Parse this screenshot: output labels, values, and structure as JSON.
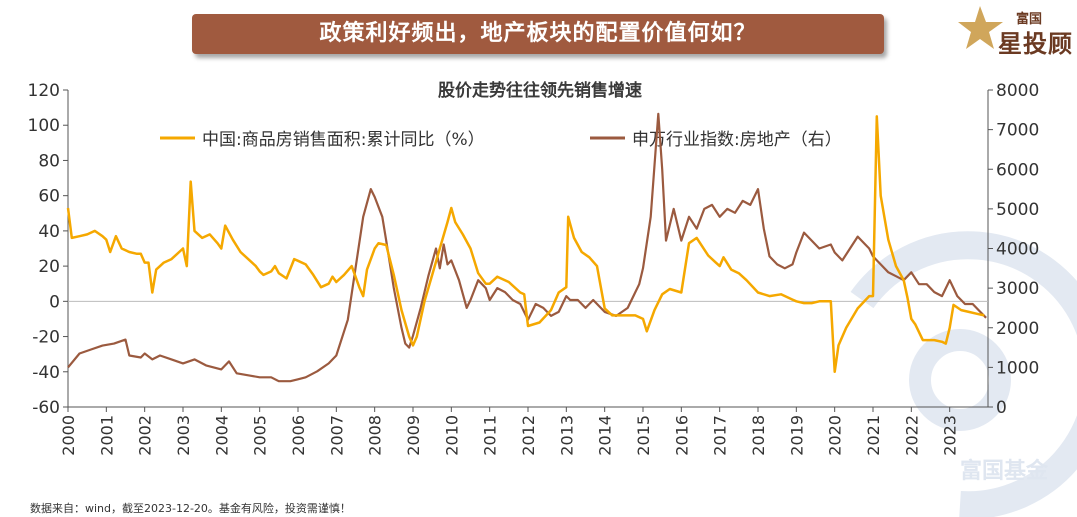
{
  "banner": {
    "title": "政策利好频出，地产板块的配置价值何如？"
  },
  "logo": {
    "small": "富国",
    "main": "星投顾"
  },
  "watermark": {
    "text": "富国基金"
  },
  "footnote": "数据来自：wind，截至2023-12-20。基金有风险，投资需谨慎！",
  "colors": {
    "banner": "#a05a3f",
    "sales": "#f5a800",
    "index": "#9b5a3f",
    "watermark": "#e3e9f2"
  },
  "chart_data": {
    "type": "line",
    "title": "股价走势往往领先销售增速",
    "x_ticks": [
      "2000",
      "2001",
      "2002",
      "2003",
      "2004",
      "2005",
      "2006",
      "2007",
      "2008",
      "2009",
      "2010",
      "2011",
      "2012",
      "2013",
      "2014",
      "2015",
      "2016",
      "2017",
      "2018",
      "2019",
      "2020",
      "2021",
      "2022",
      "2023"
    ],
    "x_range": [
      2000,
      2024
    ],
    "y_left": {
      "range": [
        -60,
        120
      ],
      "ticks": [
        120,
        100,
        80,
        60,
        40,
        20,
        0,
        -20,
        -40,
        -60
      ]
    },
    "y_right": {
      "range": [
        0,
        8000
      ],
      "ticks": [
        8000,
        7000,
        6000,
        5000,
        4000,
        3000,
        2000,
        1000,
        0
      ]
    },
    "legend": [
      "中国:商品房销售面积:累计同比（%）",
      "申万行业指数:房地产（右）"
    ],
    "series": [
      {
        "name": "中国:商品房销售面积:累计同比（%）",
        "axis": "left",
        "points": [
          [
            2000.0,
            53
          ],
          [
            2000.1,
            36
          ],
          [
            2000.3,
            37
          ],
          [
            2000.5,
            38
          ],
          [
            2000.7,
            40
          ],
          [
            2000.9,
            37
          ],
          [
            2001.0,
            35
          ],
          [
            2001.1,
            28
          ],
          [
            2001.25,
            37
          ],
          [
            2001.4,
            30
          ],
          [
            2001.6,
            28
          ],
          [
            2001.8,
            27
          ],
          [
            2001.9,
            27
          ],
          [
            2002.0,
            22
          ],
          [
            2002.1,
            22
          ],
          [
            2002.2,
            5
          ],
          [
            2002.3,
            18
          ],
          [
            2002.5,
            22
          ],
          [
            2002.7,
            24
          ],
          [
            2002.9,
            28
          ],
          [
            2003.0,
            30
          ],
          [
            2003.1,
            20
          ],
          [
            2003.2,
            68
          ],
          [
            2003.3,
            40
          ],
          [
            2003.5,
            36
          ],
          [
            2003.7,
            38
          ],
          [
            2003.9,
            33
          ],
          [
            2004.0,
            30
          ],
          [
            2004.1,
            43
          ],
          [
            2004.3,
            35
          ],
          [
            2004.5,
            28
          ],
          [
            2004.7,
            24
          ],
          [
            2004.9,
            20
          ],
          [
            2005.0,
            17
          ],
          [
            2005.1,
            15
          ],
          [
            2005.3,
            17
          ],
          [
            2005.4,
            20
          ],
          [
            2005.5,
            16
          ],
          [
            2005.7,
            13
          ],
          [
            2005.9,
            24
          ],
          [
            2006.0,
            23
          ],
          [
            2006.2,
            21
          ],
          [
            2006.4,
            15
          ],
          [
            2006.6,
            8
          ],
          [
            2006.8,
            10
          ],
          [
            2006.9,
            14
          ],
          [
            2007.0,
            11
          ],
          [
            2007.2,
            15
          ],
          [
            2007.4,
            20
          ],
          [
            2007.6,
            8
          ],
          [
            2007.7,
            3
          ],
          [
            2007.8,
            18
          ],
          [
            2008.0,
            30
          ],
          [
            2008.1,
            33
          ],
          [
            2008.3,
            32
          ],
          [
            2008.5,
            15
          ],
          [
            2008.7,
            -5
          ],
          [
            2008.9,
            -20
          ],
          [
            2009.0,
            -25
          ],
          [
            2009.1,
            -20
          ],
          [
            2009.3,
            0
          ],
          [
            2009.5,
            15
          ],
          [
            2009.7,
            30
          ],
          [
            2009.9,
            45
          ],
          [
            2010.0,
            53
          ],
          [
            2010.1,
            45
          ],
          [
            2010.3,
            38
          ],
          [
            2010.5,
            30
          ],
          [
            2010.7,
            16
          ],
          [
            2010.9,
            10
          ],
          [
            2011.0,
            10
          ],
          [
            2011.2,
            14
          ],
          [
            2011.5,
            11
          ],
          [
            2011.8,
            5
          ],
          [
            2011.9,
            4
          ],
          [
            2012.0,
            -14
          ],
          [
            2012.3,
            -12
          ],
          [
            2012.6,
            -5
          ],
          [
            2012.8,
            5
          ],
          [
            2013.0,
            8
          ],
          [
            2013.05,
            48
          ],
          [
            2013.2,
            36
          ],
          [
            2013.4,
            28
          ],
          [
            2013.6,
            25
          ],
          [
            2013.8,
            20
          ],
          [
            2014.0,
            -4
          ],
          [
            2014.2,
            -8
          ],
          [
            2014.5,
            -8
          ],
          [
            2014.8,
            -8
          ],
          [
            2015.0,
            -10
          ],
          [
            2015.1,
            -17
          ],
          [
            2015.3,
            -5
          ],
          [
            2015.5,
            4
          ],
          [
            2015.7,
            7
          ],
          [
            2016.0,
            5
          ],
          [
            2016.2,
            33
          ],
          [
            2016.4,
            36
          ],
          [
            2016.7,
            26
          ],
          [
            2016.9,
            22
          ],
          [
            2017.0,
            20
          ],
          [
            2017.1,
            25
          ],
          [
            2017.3,
            18
          ],
          [
            2017.5,
            16
          ],
          [
            2017.7,
            12
          ],
          [
            2018.0,
            5
          ],
          [
            2018.3,
            3
          ],
          [
            2018.6,
            4
          ],
          [
            2018.9,
            1
          ],
          [
            2019.0,
            0
          ],
          [
            2019.2,
            -1
          ],
          [
            2019.4,
            -1
          ],
          [
            2019.6,
            0
          ],
          [
            2019.9,
            0
          ],
          [
            2020.0,
            -40
          ],
          [
            2020.1,
            -25
          ],
          [
            2020.3,
            -15
          ],
          [
            2020.6,
            -4
          ],
          [
            2020.9,
            3
          ],
          [
            2021.0,
            3
          ],
          [
            2021.1,
            105
          ],
          [
            2021.2,
            60
          ],
          [
            2021.4,
            35
          ],
          [
            2021.6,
            20
          ],
          [
            2021.8,
            12
          ],
          [
            2021.9,
            2
          ],
          [
            2022.0,
            -10
          ],
          [
            2022.1,
            -13
          ],
          [
            2022.3,
            -22
          ],
          [
            2022.6,
            -22
          ],
          [
            2022.8,
            -23
          ],
          [
            2022.9,
            -24
          ],
          [
            2023.0,
            -15
          ],
          [
            2023.1,
            -2
          ],
          [
            2023.3,
            -5
          ],
          [
            2023.5,
            -6
          ],
          [
            2023.7,
            -7
          ],
          [
            2023.9,
            -8
          ]
        ]
      },
      {
        "name": "申万行业指数:房地产（右）",
        "axis": "right",
        "points": [
          [
            2000.0,
            1000
          ],
          [
            2000.3,
            1350
          ],
          [
            2000.6,
            1450
          ],
          [
            2000.9,
            1550
          ],
          [
            2001.2,
            1600
          ],
          [
            2001.5,
            1700
          ],
          [
            2001.6,
            1300
          ],
          [
            2001.9,
            1250
          ],
          [
            2002.0,
            1350
          ],
          [
            2002.2,
            1200
          ],
          [
            2002.4,
            1300
          ],
          [
            2002.7,
            1200
          ],
          [
            2003.0,
            1100
          ],
          [
            2003.3,
            1200
          ],
          [
            2003.6,
            1050
          ],
          [
            2003.8,
            1000
          ],
          [
            2004.0,
            950
          ],
          [
            2004.2,
            1150
          ],
          [
            2004.4,
            850
          ],
          [
            2004.7,
            800
          ],
          [
            2005.0,
            750
          ],
          [
            2005.3,
            750
          ],
          [
            2005.5,
            650
          ],
          [
            2005.8,
            650
          ],
          [
            2006.0,
            700
          ],
          [
            2006.2,
            750
          ],
          [
            2006.5,
            900
          ],
          [
            2006.8,
            1100
          ],
          [
            2007.0,
            1300
          ],
          [
            2007.3,
            2200
          ],
          [
            2007.5,
            3500
          ],
          [
            2007.7,
            4800
          ],
          [
            2007.9,
            5500
          ],
          [
            2008.0,
            5300
          ],
          [
            2008.2,
            4800
          ],
          [
            2008.3,
            4200
          ],
          [
            2008.5,
            3000
          ],
          [
            2008.7,
            2000
          ],
          [
            2008.8,
            1600
          ],
          [
            2008.9,
            1500
          ],
          [
            2009.0,
            1800
          ],
          [
            2009.2,
            2500
          ],
          [
            2009.4,
            3300
          ],
          [
            2009.6,
            4000
          ],
          [
            2009.7,
            3500
          ],
          [
            2009.8,
            4100
          ],
          [
            2009.9,
            3600
          ],
          [
            2010.0,
            3700
          ],
          [
            2010.2,
            3200
          ],
          [
            2010.4,
            2500
          ],
          [
            2010.5,
            2700
          ],
          [
            2010.7,
            3200
          ],
          [
            2010.9,
            3000
          ],
          [
            2011.0,
            2700
          ],
          [
            2011.2,
            3000
          ],
          [
            2011.4,
            2900
          ],
          [
            2011.6,
            2700
          ],
          [
            2011.8,
            2600
          ],
          [
            2012.0,
            2200
          ],
          [
            2012.2,
            2600
          ],
          [
            2012.4,
            2500
          ],
          [
            2012.6,
            2300
          ],
          [
            2012.8,
            2400
          ],
          [
            2013.0,
            2800
          ],
          [
            2013.1,
            2700
          ],
          [
            2013.3,
            2700
          ],
          [
            2013.5,
            2500
          ],
          [
            2013.7,
            2700
          ],
          [
            2013.9,
            2500
          ],
          [
            2014.0,
            2400
          ],
          [
            2014.3,
            2300
          ],
          [
            2014.6,
            2500
          ],
          [
            2014.9,
            3100
          ],
          [
            2015.0,
            3500
          ],
          [
            2015.2,
            4800
          ],
          [
            2015.4,
            7400
          ],
          [
            2015.5,
            6000
          ],
          [
            2015.6,
            4200
          ],
          [
            2015.8,
            5000
          ],
          [
            2016.0,
            4200
          ],
          [
            2016.2,
            4800
          ],
          [
            2016.4,
            4500
          ],
          [
            2016.6,
            5000
          ],
          [
            2016.8,
            5100
          ],
          [
            2017.0,
            4800
          ],
          [
            2017.2,
            5000
          ],
          [
            2017.4,
            4900
          ],
          [
            2017.6,
            5200
          ],
          [
            2017.8,
            5100
          ],
          [
            2018.0,
            5500
          ],
          [
            2018.15,
            4500
          ],
          [
            2018.3,
            3800
          ],
          [
            2018.5,
            3600
          ],
          [
            2018.7,
            3500
          ],
          [
            2018.9,
            3600
          ],
          [
            2019.0,
            3900
          ],
          [
            2019.2,
            4400
          ],
          [
            2019.4,
            4200
          ],
          [
            2019.6,
            4000
          ],
          [
            2019.9,
            4100
          ],
          [
            2020.0,
            3900
          ],
          [
            2020.2,
            3700
          ],
          [
            2020.4,
            4000
          ],
          [
            2020.6,
            4300
          ],
          [
            2020.8,
            4100
          ],
          [
            2020.9,
            4000
          ],
          [
            2021.0,
            3800
          ],
          [
            2021.2,
            3600
          ],
          [
            2021.4,
            3400
          ],
          [
            2021.6,
            3300
          ],
          [
            2021.8,
            3200
          ],
          [
            2022.0,
            3400
          ],
          [
            2022.2,
            3100
          ],
          [
            2022.4,
            3100
          ],
          [
            2022.6,
            2900
          ],
          [
            2022.8,
            2800
          ],
          [
            2023.0,
            3200
          ],
          [
            2023.2,
            2800
          ],
          [
            2023.4,
            2600
          ],
          [
            2023.6,
            2600
          ],
          [
            2023.8,
            2400
          ],
          [
            2023.95,
            2250
          ]
        ]
      }
    ]
  }
}
